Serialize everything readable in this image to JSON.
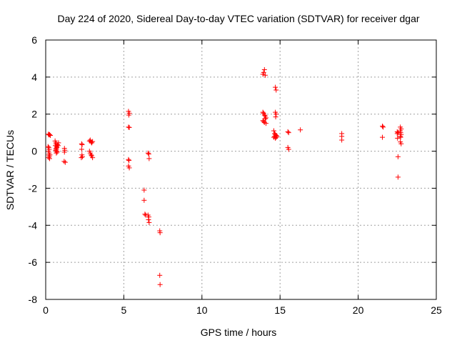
{
  "chart_data": {
    "type": "scatter",
    "title": "Day 224 of 2020, Sidereal Day-to-day VTEC variation (SDTVAR) for receiver dgar",
    "xlabel": "GPS time / hours",
    "ylabel": "SDTVAR / TECUs",
    "xlim": [
      0,
      25
    ],
    "ylim": [
      -8,
      6
    ],
    "xticks": [
      0,
      5,
      10,
      15,
      20,
      25
    ],
    "yticks": [
      -8,
      -6,
      -4,
      -2,
      0,
      2,
      4,
      6
    ],
    "xtick_labels": [
      "0",
      "5",
      "10",
      "15",
      "20",
      "25"
    ],
    "ytick_labels": [
      "-8",
      "-6",
      "-4",
      "-2",
      "0",
      "2",
      "4",
      "6"
    ],
    "grid": true,
    "marker": "+",
    "color": "#ff0000",
    "series": [
      {
        "name": "SDTVAR",
        "points": [
          [
            0.17,
            0.92
          ],
          [
            0.21,
            0.88
          ],
          [
            0.25,
            0.9
          ],
          [
            0.3,
            0.85
          ],
          [
            0.15,
            0.25
          ],
          [
            0.2,
            0.2
          ],
          [
            0.22,
            0.1
          ],
          [
            0.18,
            0.0
          ],
          [
            0.22,
            -0.1
          ],
          [
            0.2,
            -0.2
          ],
          [
            0.23,
            -0.28
          ],
          [
            0.19,
            -0.35
          ],
          [
            0.25,
            -0.4
          ],
          [
            0.27,
            -0.2
          ],
          [
            0.6,
            0.55
          ],
          [
            0.65,
            0.45
          ],
          [
            0.68,
            0.38
          ],
          [
            0.62,
            0.3
          ],
          [
            0.7,
            0.25
          ],
          [
            0.72,
            0.2
          ],
          [
            0.66,
            0.15
          ],
          [
            0.68,
            0.1
          ],
          [
            0.64,
            0.05
          ],
          [
            0.7,
            0.0
          ],
          [
            0.73,
            -0.05
          ],
          [
            0.68,
            -0.1
          ],
          [
            0.75,
            0.35
          ],
          [
            0.8,
            0.3
          ],
          [
            0.82,
            0.45
          ],
          [
            1.2,
            0.15
          ],
          [
            1.22,
            0.05
          ],
          [
            1.2,
            -0.05
          ],
          [
            1.18,
            -0.55
          ],
          [
            1.25,
            -0.6
          ],
          [
            2.3,
            0.4
          ],
          [
            2.33,
            0.35
          ],
          [
            2.3,
            0.1
          ],
          [
            2.32,
            -0.2
          ],
          [
            2.28,
            -0.35
          ],
          [
            2.35,
            -0.3
          ],
          [
            2.8,
            0.55
          ],
          [
            2.85,
            0.6
          ],
          [
            2.9,
            0.5
          ],
          [
            2.95,
            0.45
          ],
          [
            3.0,
            0.52
          ],
          [
            2.8,
            0.0
          ],
          [
            2.85,
            -0.1
          ],
          [
            2.9,
            -0.2
          ],
          [
            2.95,
            -0.25
          ],
          [
            3.0,
            -0.35
          ],
          [
            5.3,
            2.15
          ],
          [
            5.35,
            2.05
          ],
          [
            5.32,
            1.95
          ],
          [
            5.3,
            1.3
          ],
          [
            5.35,
            1.28
          ],
          [
            5.3,
            -0.45
          ],
          [
            5.33,
            -0.5
          ],
          [
            5.3,
            -0.8
          ],
          [
            5.35,
            -0.9
          ],
          [
            6.3,
            -2.1
          ],
          [
            6.3,
            -2.65
          ],
          [
            6.35,
            -3.4
          ],
          [
            6.4,
            -3.45
          ],
          [
            6.55,
            -0.1
          ],
          [
            6.6,
            -0.15
          ],
          [
            6.62,
            -0.4
          ],
          [
            6.55,
            -3.45
          ],
          [
            6.6,
            -3.55
          ],
          [
            6.58,
            -3.7
          ],
          [
            6.62,
            -3.85
          ],
          [
            7.3,
            -4.3
          ],
          [
            7.32,
            -4.4
          ],
          [
            7.3,
            -6.7
          ],
          [
            7.32,
            -7.2
          ],
          [
            13.9,
            4.15
          ],
          [
            13.95,
            4.25
          ],
          [
            14.0,
            4.4
          ],
          [
            14.05,
            4.1
          ],
          [
            13.9,
            2.1
          ],
          [
            13.95,
            2.05
          ],
          [
            14.0,
            1.95
          ],
          [
            14.05,
            1.9
          ],
          [
            14.1,
            1.8
          ],
          [
            13.9,
            1.65
          ],
          [
            13.95,
            1.6
          ],
          [
            14.0,
            1.55
          ],
          [
            14.05,
            1.75
          ],
          [
            14.1,
            1.5
          ],
          [
            14.7,
            3.45
          ],
          [
            14.75,
            3.3
          ],
          [
            14.7,
            2.1
          ],
          [
            14.75,
            2.0
          ],
          [
            14.72,
            1.85
          ],
          [
            14.6,
            1.1
          ],
          [
            14.65,
            0.95
          ],
          [
            14.7,
            0.9
          ],
          [
            14.75,
            0.85
          ],
          [
            14.8,
            0.8
          ],
          [
            14.6,
            0.75
          ],
          [
            14.65,
            0.8
          ],
          [
            14.7,
            0.7
          ],
          [
            14.75,
            0.75
          ],
          [
            15.5,
            1.05
          ],
          [
            15.55,
            1.0
          ],
          [
            15.5,
            0.2
          ],
          [
            15.55,
            0.1
          ],
          [
            16.3,
            1.15
          ],
          [
            18.95,
            0.95
          ],
          [
            18.95,
            0.8
          ],
          [
            18.95,
            0.6
          ],
          [
            21.55,
            1.35
          ],
          [
            21.6,
            1.3
          ],
          [
            21.55,
            0.75
          ],
          [
            22.5,
            1.05
          ],
          [
            22.55,
            1.0
          ],
          [
            22.5,
            0.95
          ],
          [
            22.52,
            0.7
          ],
          [
            22.55,
            -0.3
          ],
          [
            22.55,
            -1.4
          ],
          [
            22.7,
            1.3
          ],
          [
            22.75,
            1.2
          ],
          [
            22.7,
            1.1
          ],
          [
            22.72,
            1.0
          ],
          [
            22.75,
            0.9
          ],
          [
            22.7,
            0.8
          ],
          [
            22.72,
            0.75
          ],
          [
            22.7,
            0.5
          ],
          [
            22.75,
            0.4
          ]
        ]
      }
    ]
  }
}
